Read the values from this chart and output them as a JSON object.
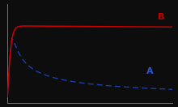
{
  "background_color": "#0d0d0d",
  "curve_B_color": "#cc0000",
  "curve_A_color": "#1a3faa",
  "label_B": "B",
  "label_A": "A",
  "label_color_B": "#cc0000",
  "label_color_A": "#3355cc",
  "label_fontsize": 8,
  "xlim": [
    0,
    1
  ],
  "ylim": [
    0,
    1.05
  ],
  "spine_color": "#777777",
  "figsize": [
    2.2,
    1.32
  ],
  "dpi": 100
}
